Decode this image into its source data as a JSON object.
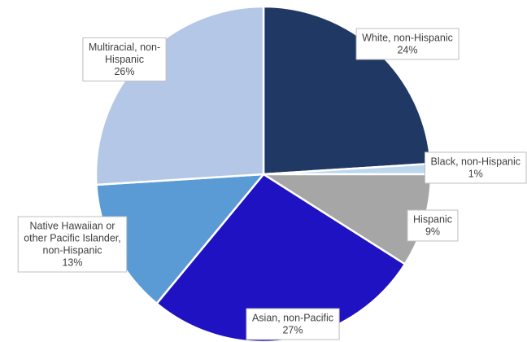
{
  "chart_data": {
    "type": "pie",
    "title": "",
    "start_angle_deg": 0,
    "direction": "clockwise",
    "slices": [
      {
        "category": "White, non-Hispanic",
        "value": 24,
        "color": "#1f3864",
        "label_lines": [
          "White, non-Hispanic",
          "24%"
        ]
      },
      {
        "category": "Black, non-Hispanic",
        "value": 1,
        "color": "#bdd7ee",
        "label_lines": [
          "Black, non-Hispanic",
          "1%"
        ]
      },
      {
        "category": "Hispanic",
        "value": 9,
        "color": "#a6a6a6",
        "label_lines": [
          "Hispanic",
          "9%"
        ]
      },
      {
        "category": "Asian, non-Pacific",
        "value": 27,
        "color": "#1f12c2",
        "label_lines": [
          "Asian, non-Pacific",
          "27%"
        ]
      },
      {
        "category": "Native Hawaiian or other Pacific Islander, non-Hispanic",
        "value": 13,
        "color": "#5b9bd5",
        "label_lines": [
          "Native Hawaiian or",
          "other Pacific Islander,",
          "non-Hispanic",
          "13%"
        ]
      },
      {
        "category": "Multiracial, non-Hispanic",
        "value": 26,
        "color": "#b4c7e7",
        "label_lines": [
          "Multiracial, non-",
          "Hispanic",
          "26%"
        ]
      }
    ]
  }
}
